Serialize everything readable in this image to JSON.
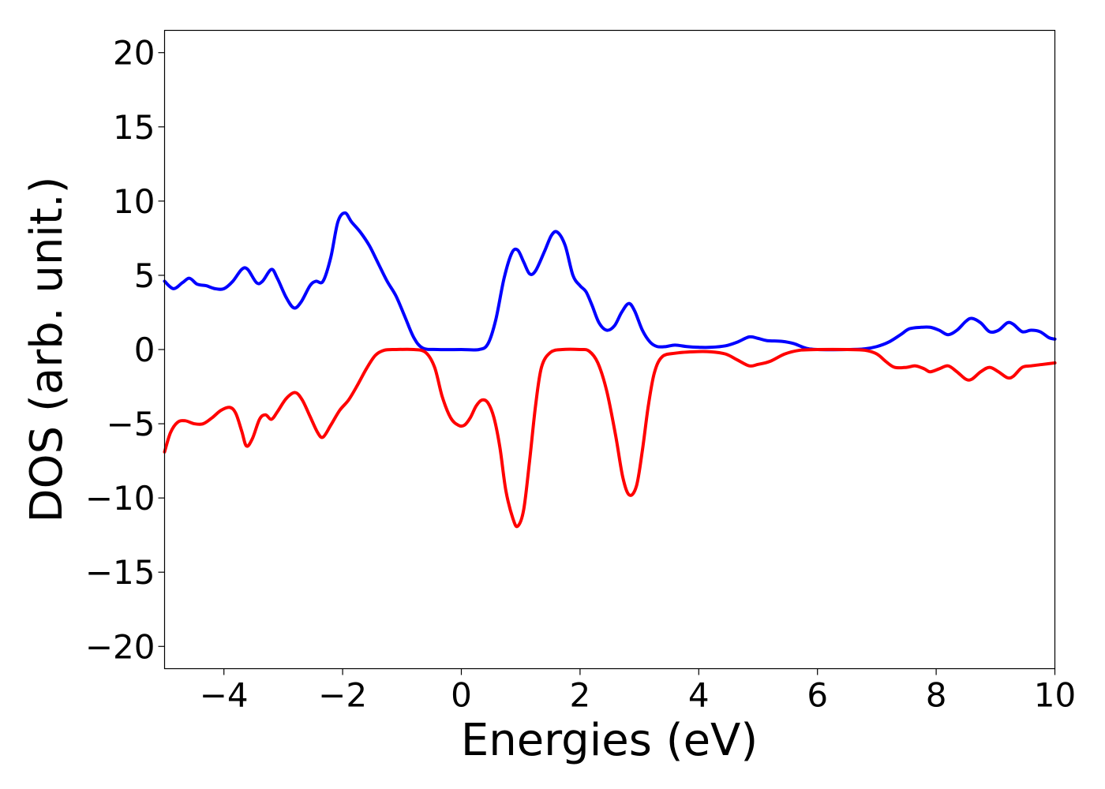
{
  "chart_data": {
    "type": "line",
    "title": "",
    "xlabel": "Energies (eV)",
    "ylabel": "DOS (arb. unit.)",
    "xlim": [
      -5,
      10
    ],
    "ylim": [
      -21.5,
      21.5
    ],
    "xticks": [
      -4,
      -2,
      0,
      2,
      4,
      6,
      8,
      10
    ],
    "yticks": [
      -20,
      -15,
      -10,
      -5,
      0,
      5,
      10,
      15,
      20
    ],
    "xtick_labels": [
      "−4",
      "−2",
      "0",
      "2",
      "4",
      "6",
      "8",
      "10"
    ],
    "ytick_labels": [
      "−20",
      "−15",
      "−10",
      "−5",
      "0",
      "5",
      "10",
      "15",
      "20"
    ],
    "grid": false,
    "series": [
      {
        "color": "#0000ff",
        "points": [
          [
            -5.0,
            4.6
          ],
          [
            -4.85,
            4.1
          ],
          [
            -4.7,
            4.5
          ],
          [
            -4.58,
            4.8
          ],
          [
            -4.45,
            4.4
          ],
          [
            -4.3,
            4.3
          ],
          [
            -4.15,
            4.1
          ],
          [
            -4.0,
            4.1
          ],
          [
            -3.85,
            4.6
          ],
          [
            -3.7,
            5.4
          ],
          [
            -3.6,
            5.4
          ],
          [
            -3.45,
            4.5
          ],
          [
            -3.35,
            4.6
          ],
          [
            -3.2,
            5.4
          ],
          [
            -3.1,
            4.8
          ],
          [
            -2.95,
            3.5
          ],
          [
            -2.82,
            2.8
          ],
          [
            -2.7,
            3.2
          ],
          [
            -2.55,
            4.3
          ],
          [
            -2.45,
            4.6
          ],
          [
            -2.33,
            4.6
          ],
          [
            -2.2,
            6.2
          ],
          [
            -2.08,
            8.6
          ],
          [
            -1.96,
            9.2
          ],
          [
            -1.85,
            8.6
          ],
          [
            -1.7,
            7.9
          ],
          [
            -1.55,
            7.0
          ],
          [
            -1.4,
            5.8
          ],
          [
            -1.25,
            4.6
          ],
          [
            -1.1,
            3.6
          ],
          [
            -0.95,
            2.2
          ],
          [
            -0.8,
            0.8
          ],
          [
            -0.65,
            0.1
          ],
          [
            -0.4,
            0.0
          ],
          [
            0.0,
            0.0
          ],
          [
            0.3,
            0.0
          ],
          [
            0.45,
            0.4
          ],
          [
            0.58,
            2.0
          ],
          [
            0.72,
            4.8
          ],
          [
            0.85,
            6.5
          ],
          [
            0.95,
            6.7
          ],
          [
            1.05,
            5.9
          ],
          [
            1.15,
            5.1
          ],
          [
            1.25,
            5.3
          ],
          [
            1.4,
            6.6
          ],
          [
            1.52,
            7.7
          ],
          [
            1.62,
            7.9
          ],
          [
            1.75,
            7.0
          ],
          [
            1.88,
            5.0
          ],
          [
            2.0,
            4.3
          ],
          [
            2.1,
            3.9
          ],
          [
            2.2,
            3.0
          ],
          [
            2.32,
            1.8
          ],
          [
            2.45,
            1.3
          ],
          [
            2.58,
            1.6
          ],
          [
            2.7,
            2.5
          ],
          [
            2.82,
            3.1
          ],
          [
            2.92,
            2.6
          ],
          [
            3.05,
            1.3
          ],
          [
            3.18,
            0.5
          ],
          [
            3.3,
            0.2
          ],
          [
            3.45,
            0.2
          ],
          [
            3.6,
            0.3
          ],
          [
            3.8,
            0.2
          ],
          [
            4.0,
            0.15
          ],
          [
            4.2,
            0.15
          ],
          [
            4.45,
            0.25
          ],
          [
            4.65,
            0.5
          ],
          [
            4.85,
            0.85
          ],
          [
            5.0,
            0.75
          ],
          [
            5.15,
            0.6
          ],
          [
            5.4,
            0.55
          ],
          [
            5.6,
            0.4
          ],
          [
            5.8,
            0.1
          ],
          [
            6.0,
            0.0
          ],
          [
            6.5,
            0.0
          ],
          [
            6.8,
            0.05
          ],
          [
            7.0,
            0.2
          ],
          [
            7.2,
            0.5
          ],
          [
            7.4,
            1.0
          ],
          [
            7.55,
            1.4
          ],
          [
            7.75,
            1.5
          ],
          [
            7.9,
            1.5
          ],
          [
            8.05,
            1.3
          ],
          [
            8.2,
            1.0
          ],
          [
            8.35,
            1.3
          ],
          [
            8.5,
            1.9
          ],
          [
            8.6,
            2.1
          ],
          [
            8.75,
            1.8
          ],
          [
            8.9,
            1.2
          ],
          [
            9.05,
            1.3
          ],
          [
            9.2,
            1.8
          ],
          [
            9.3,
            1.7
          ],
          [
            9.45,
            1.2
          ],
          [
            9.6,
            1.3
          ],
          [
            9.75,
            1.2
          ],
          [
            9.9,
            0.8
          ],
          [
            10.0,
            0.7
          ]
        ]
      },
      {
        "color": "#ff0000",
        "points": [
          [
            -5.0,
            -6.9
          ],
          [
            -4.9,
            -5.6
          ],
          [
            -4.78,
            -4.9
          ],
          [
            -4.65,
            -4.8
          ],
          [
            -4.5,
            -5.0
          ],
          [
            -4.35,
            -5.0
          ],
          [
            -4.2,
            -4.6
          ],
          [
            -4.05,
            -4.1
          ],
          [
            -3.9,
            -3.9
          ],
          [
            -3.8,
            -4.3
          ],
          [
            -3.7,
            -5.5
          ],
          [
            -3.62,
            -6.5
          ],
          [
            -3.52,
            -6.0
          ],
          [
            -3.4,
            -4.7
          ],
          [
            -3.3,
            -4.4
          ],
          [
            -3.2,
            -4.7
          ],
          [
            -3.1,
            -4.2
          ],
          [
            -2.95,
            -3.3
          ],
          [
            -2.8,
            -2.9
          ],
          [
            -2.68,
            -3.4
          ],
          [
            -2.55,
            -4.5
          ],
          [
            -2.42,
            -5.6
          ],
          [
            -2.33,
            -5.9
          ],
          [
            -2.2,
            -5.1
          ],
          [
            -2.05,
            -4.1
          ],
          [
            -1.9,
            -3.4
          ],
          [
            -1.75,
            -2.4
          ],
          [
            -1.6,
            -1.3
          ],
          [
            -1.45,
            -0.4
          ],
          [
            -1.3,
            -0.05
          ],
          [
            -1.1,
            0.0
          ],
          [
            -0.8,
            0.0
          ],
          [
            -0.6,
            -0.2
          ],
          [
            -0.45,
            -1.2
          ],
          [
            -0.32,
            -3.2
          ],
          [
            -0.18,
            -4.6
          ],
          [
            -0.05,
            -5.1
          ],
          [
            0.05,
            -5.1
          ],
          [
            0.15,
            -4.6
          ],
          [
            0.25,
            -3.8
          ],
          [
            0.35,
            -3.4
          ],
          [
            0.45,
            -3.6
          ],
          [
            0.55,
            -4.6
          ],
          [
            0.65,
            -6.6
          ],
          [
            0.75,
            -9.5
          ],
          [
            0.87,
            -11.4
          ],
          [
            0.95,
            -11.9
          ],
          [
            1.05,
            -10.8
          ],
          [
            1.15,
            -7.5
          ],
          [
            1.25,
            -3.8
          ],
          [
            1.35,
            -1.2
          ],
          [
            1.5,
            -0.2
          ],
          [
            1.7,
            0.0
          ],
          [
            2.0,
            0.0
          ],
          [
            2.15,
            -0.1
          ],
          [
            2.3,
            -0.9
          ],
          [
            2.45,
            -2.8
          ],
          [
            2.6,
            -5.8
          ],
          [
            2.72,
            -8.6
          ],
          [
            2.83,
            -9.8
          ],
          [
            2.95,
            -9.2
          ],
          [
            3.05,
            -6.8
          ],
          [
            3.15,
            -3.8
          ],
          [
            3.25,
            -1.6
          ],
          [
            3.38,
            -0.5
          ],
          [
            3.6,
            -0.25
          ],
          [
            3.9,
            -0.15
          ],
          [
            4.2,
            -0.15
          ],
          [
            4.45,
            -0.3
          ],
          [
            4.65,
            -0.7
          ],
          [
            4.85,
            -1.1
          ],
          [
            5.0,
            -1.0
          ],
          [
            5.2,
            -0.8
          ],
          [
            5.45,
            -0.3
          ],
          [
            5.7,
            -0.05
          ],
          [
            6.0,
            0.0
          ],
          [
            6.5,
            0.0
          ],
          [
            6.8,
            -0.05
          ],
          [
            7.0,
            -0.3
          ],
          [
            7.15,
            -0.8
          ],
          [
            7.3,
            -1.2
          ],
          [
            7.5,
            -1.2
          ],
          [
            7.65,
            -1.1
          ],
          [
            7.8,
            -1.3
          ],
          [
            7.9,
            -1.5
          ],
          [
            8.05,
            -1.3
          ],
          [
            8.2,
            -1.1
          ],
          [
            8.35,
            -1.5
          ],
          [
            8.5,
            -2.0
          ],
          [
            8.6,
            -2.0
          ],
          [
            8.75,
            -1.5
          ],
          [
            8.9,
            -1.2
          ],
          [
            9.05,
            -1.5
          ],
          [
            9.2,
            -1.9
          ],
          [
            9.3,
            -1.8
          ],
          [
            9.45,
            -1.2
          ],
          [
            9.6,
            -1.1
          ],
          [
            9.8,
            -1.0
          ],
          [
            10.0,
            -0.9
          ]
        ]
      }
    ]
  }
}
